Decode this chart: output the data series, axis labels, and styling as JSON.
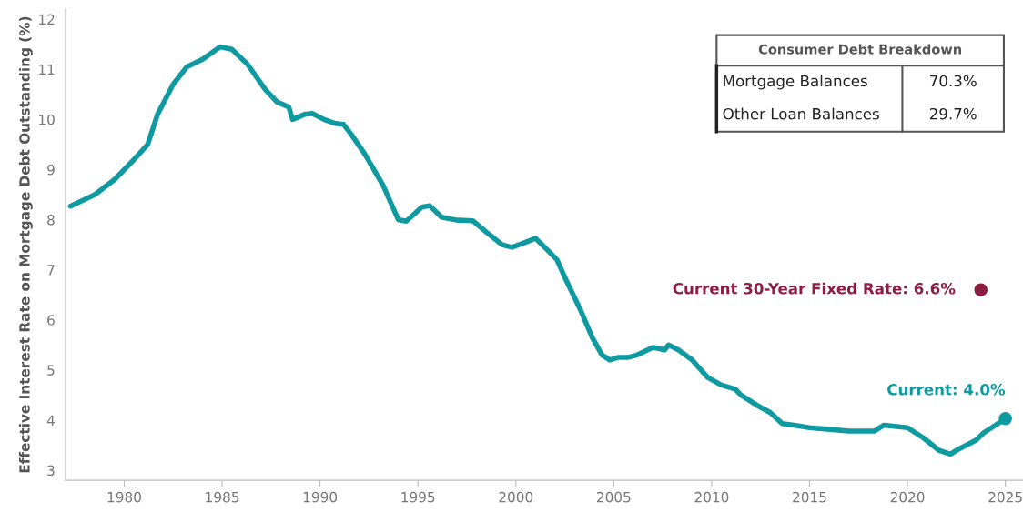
{
  "chart_data": {
    "type": "line",
    "ylabel": "Effective Interest Rate on Mortgage Debt Outstanding (%)",
    "xlim": [
      1977,
      2025.9
    ],
    "ylim": [
      2.8,
      12.2
    ],
    "xticks": [
      1980,
      1985,
      1990,
      1995,
      2000,
      2005,
      2010,
      2015,
      2020,
      2025
    ],
    "yticks": [
      3,
      4,
      5,
      6,
      7,
      8,
      9,
      10,
      11,
      12
    ],
    "grid": false,
    "legend": false,
    "line_style": "solid",
    "series": [
      {
        "color": "#0e9aa0",
        "x": [
          1977.25,
          1978.5,
          1979.5,
          1980.5,
          1981.2,
          1981.7,
          1982.5,
          1983.2,
          1984,
          1984.9,
          1985.5,
          1986.3,
          1987.2,
          1987.8,
          1988.4,
          1988.6,
          1989.2,
          1989.6,
          1990.2,
          1990.8,
          1991.2,
          1991.6,
          1992.3,
          1993.2,
          1994,
          1994.4,
          1995.2,
          1995.6,
          1996.2,
          1997,
          1997.8,
          1998.5,
          1999.3,
          1999.8,
          2000.5,
          2001,
          2001.6,
          2002.1,
          2002.5,
          2003.3,
          2003.9,
          2004.4,
          2004.8,
          2005.2,
          2005.7,
          2006.2,
          2007,
          2007.6,
          2007.8,
          2008.3,
          2009,
          2009.8,
          2010.5,
          2011.2,
          2011.5,
          2012.3,
          2013,
          2013.6,
          2014.2,
          2015,
          2015.9,
          2017,
          2018.3,
          2018.8,
          2020,
          2020.8,
          2021.6,
          2022.2,
          2022.6,
          2023.5,
          2023.9,
          2024.3,
          2025
        ],
        "values": [
          8.27,
          8.5,
          8.8,
          9.2,
          9.5,
          10.1,
          10.7,
          11.05,
          11.2,
          11.45,
          11.4,
          11.1,
          10.6,
          10.35,
          10.25,
          10.0,
          10.1,
          10.12,
          10.0,
          9.92,
          9.9,
          9.7,
          9.3,
          8.7,
          8.0,
          7.97,
          8.25,
          8.28,
          8.05,
          7.99,
          7.98,
          7.75,
          7.5,
          7.45,
          7.55,
          7.63,
          7.4,
          7.2,
          6.85,
          6.2,
          5.65,
          5.3,
          5.2,
          5.25,
          5.25,
          5.3,
          5.45,
          5.4,
          5.5,
          5.4,
          5.2,
          4.85,
          4.7,
          4.62,
          4.5,
          4.3,
          4.15,
          3.93,
          3.9,
          3.85,
          3.82,
          3.78,
          3.78,
          3.9,
          3.85,
          3.65,
          3.4,
          3.32,
          3.42,
          3.6,
          3.75,
          3.85,
          4.03
        ]
      },
      {
        "type": "scatter",
        "marker": "circle",
        "color": "#0e9aa0",
        "x": [
          2025
        ],
        "values": [
          4.03
        ]
      },
      {
        "type": "scatter",
        "marker": "circle",
        "color": "#8b1e41",
        "x": [
          2023.75
        ],
        "values": [
          6.6
        ]
      }
    ],
    "annotations": [
      {
        "text": "Current: 4.0%",
        "x": 2025,
        "y": 4.03
      },
      {
        "text": "Current 30-Year Fixed Rate: 6.6%",
        "x": 2023.75,
        "y": 6.6
      },
      "Consumer Debt Breakdown",
      "Mortgage Balances",
      "70.3%",
      "Other Loan Balances",
      "29.7%"
    ]
  }
}
